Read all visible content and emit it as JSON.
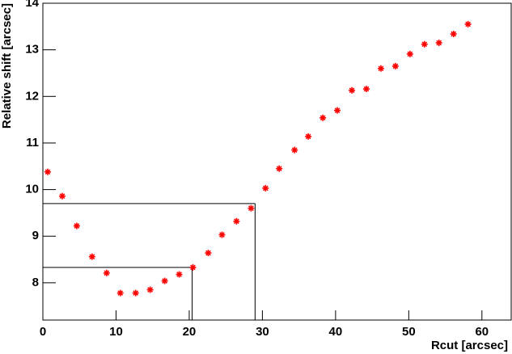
{
  "chart_data": {
    "type": "scatter",
    "x_label": "Rcut [arcsec]",
    "y_label": "Relative shift [arcsec]",
    "x": [
      0.66,
      2.65,
      4.63,
      6.73,
      8.71,
      10.58,
      12.68,
      14.66,
      16.65,
      18.63,
      20.5,
      22.6,
      24.48,
      26.46,
      28.45,
      30.43,
      32.3,
      34.4,
      36.27,
      38.26,
      40.24,
      42.23,
      44.21,
      46.2,
      48.18,
      50.17,
      52.15,
      54.13,
      56.12,
      58.1
    ],
    "series": [
      {
        "color": "#ff0000",
        "values": [
          10.38,
          9.86,
          9.22,
          8.56,
          8.21,
          7.78,
          7.78,
          7.85,
          8.04,
          8.18,
          8.33,
          8.64,
          9.03,
          9.32,
          9.6,
          10.03,
          10.45,
          10.85,
          11.14,
          11.54,
          11.7,
          12.13,
          12.16,
          12.6,
          12.65,
          12.91,
          13.12,
          13.15,
          13.34,
          13.55
        ]
      }
    ],
    "guides": [
      {
        "x": 29.0,
        "y": 9.7
      },
      {
        "x": 20.4,
        "y": 8.33
      }
    ],
    "xlim": [
      0,
      64
    ],
    "ylim": [
      7.2,
      14
    ],
    "xticks": [
      0,
      10,
      20,
      30,
      40,
      50,
      60
    ],
    "yticks": [
      8,
      9,
      10,
      11,
      12,
      13,
      14
    ]
  }
}
